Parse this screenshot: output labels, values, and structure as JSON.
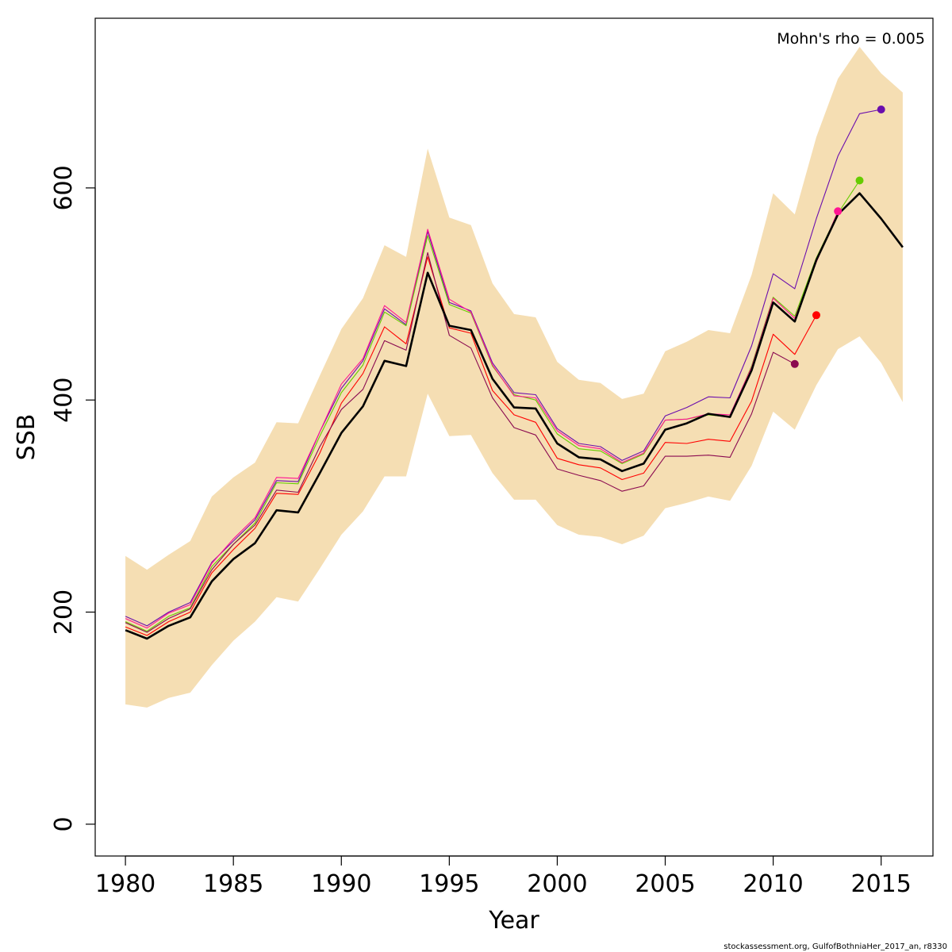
{
  "chart_data": {
    "type": "line",
    "xlabel": "Year",
    "ylabel": "SSB",
    "xlim": [
      1978.6,
      2017.4
    ],
    "ylim": [
      -30,
      760
    ],
    "xticks": [
      1980,
      1985,
      1990,
      1995,
      2000,
      2005,
      2010,
      2015
    ],
    "yticks": [
      0,
      200,
      400,
      600
    ],
    "grid": false,
    "annotation": "Mohn's rho = 0.005",
    "footer": "stockassessment.org, GulfofBothniaHer_2017_an, r8330",
    "colors": {
      "band": "#f5deb3",
      "main": "#000000",
      "peel_2015": "#6a0dad",
      "peel_2014": "#66cc00",
      "peel_2013": "#ff1493",
      "peel_2012": "#ff0000",
      "peel_2011": "#8b0a50"
    },
    "band": {
      "x": [
        1980,
        1981,
        1982,
        1983,
        1984,
        1985,
        1986,
        1987,
        1988,
        1989,
        1990,
        1991,
        1992,
        1993,
        1994,
        1995,
        1996,
        1997,
        1998,
        1999,
        2000,
        2001,
        2002,
        2003,
        2004,
        2005,
        2006,
        2007,
        2008,
        2009,
        2010,
        2011,
        2012,
        2013,
        2014,
        2015,
        2016
      ],
      "upper": [
        253,
        240,
        254,
        267,
        309,
        327,
        341,
        379,
        378,
        423,
        467,
        496,
        546,
        535,
        637,
        572,
        565,
        510,
        481,
        478,
        436,
        419,
        416,
        401,
        406,
        446,
        455,
        466,
        463,
        518,
        595,
        575,
        648,
        703,
        733,
        708,
        690
      ],
      "lower": [
        113,
        110,
        119,
        124,
        150,
        173,
        191,
        214,
        210,
        241,
        273,
        295,
        328,
        328,
        406,
        366,
        367,
        331,
        306,
        306,
        282,
        273,
        271,
        264,
        272,
        298,
        303,
        309,
        305,
        338,
        389,
        372,
        414,
        448,
        460,
        435,
        398
      ]
    },
    "series": [
      {
        "color_key": "main",
        "x": [
          1980,
          1981,
          1982,
          1983,
          1984,
          1985,
          1986,
          1987,
          1988,
          1989,
          1990,
          1991,
          1992,
          1993,
          1994,
          1995,
          1996,
          1997,
          1998,
          1999,
          2000,
          2001,
          2002,
          2003,
          2004,
          2005,
          2006,
          2007,
          2008,
          2009,
          2010,
          2011,
          2012,
          2013,
          2014,
          2015,
          2016
        ],
        "values": [
          183,
          175,
          187,
          195,
          229,
          250,
          265,
          296,
          294,
          331,
          369,
          394,
          437,
          432,
          520,
          470,
          466,
          420,
          393,
          392,
          359,
          346,
          344,
          333,
          340,
          372,
          378,
          387,
          384,
          428,
          492,
          474,
          532,
          575,
          595,
          571,
          544
        ]
      },
      {
        "color_key": "peel_2015",
        "x": [
          1980,
          1981,
          1982,
          1983,
          1984,
          1985,
          1986,
          1987,
          1988,
          1989,
          1990,
          1991,
          1992,
          1993,
          1994,
          1995,
          1996,
          1997,
          1998,
          1999,
          2000,
          2001,
          2002,
          2003,
          2004,
          2005,
          2006,
          2007,
          2008,
          2009,
          2010,
          2011,
          2012,
          2013,
          2014,
          2015
        ],
        "values": [
          196,
          187,
          200,
          209,
          247,
          267,
          287,
          324,
          323,
          370,
          411,
          437,
          486,
          471,
          559,
          492,
          484,
          435,
          407,
          405,
          373,
          359,
          356,
          343,
          352,
          385,
          393,
          403,
          402,
          451,
          519,
          505,
          571,
          630,
          670,
          674
        ]
      },
      {
        "color_key": "peel_2014",
        "x": [
          1980,
          1981,
          1982,
          1983,
          1984,
          1985,
          1986,
          1987,
          1988,
          1989,
          1990,
          1991,
          1992,
          1993,
          1994,
          1995,
          1996,
          1997,
          1998,
          1999,
          2000,
          2001,
          2002,
          2003,
          2004,
          2005,
          2006,
          2007,
          2008,
          2009,
          2010,
          2011,
          2012,
          2013,
          2014
        ],
        "values": [
          191,
          182,
          196,
          204,
          243,
          264,
          284,
          322,
          321,
          366,
          407,
          433,
          483,
          470,
          555,
          490,
          482,
          432,
          405,
          400,
          368,
          354,
          352,
          340,
          349,
          381,
          382,
          386,
          384,
          432,
          497,
          479,
          534,
          576,
          607
        ]
      },
      {
        "color_key": "peel_2013",
        "x": [
          1980,
          1981,
          1982,
          1983,
          1984,
          1985,
          1986,
          1987,
          1988,
          1989,
          1990,
          1991,
          1992,
          1993,
          1994,
          1995,
          1996,
          1997,
          1998,
          1999,
          2000,
          2001,
          2002,
          2003,
          2004,
          2005,
          2006,
          2007,
          2008,
          2009,
          2010,
          2011,
          2012,
          2013
        ],
        "values": [
          194,
          185,
          199,
          207,
          246,
          269,
          289,
          327,
          326,
          370,
          415,
          439,
          489,
          473,
          561,
          495,
          483,
          433,
          404,
          402,
          371,
          357,
          354,
          341,
          350,
          381,
          382,
          387,
          386,
          431,
          496,
          477,
          530,
          578
        ]
      },
      {
        "color_key": "peel_2012",
        "x": [
          1980,
          1981,
          1982,
          1983,
          1984,
          1985,
          1986,
          1987,
          1988,
          1989,
          1990,
          1991,
          1992,
          1993,
          1994,
          1995,
          1996,
          1997,
          1998,
          1999,
          2000,
          2001,
          2002,
          2003,
          2004,
          2005,
          2006,
          2007,
          2008,
          2009,
          2010,
          2011,
          2012
        ],
        "values": [
          186,
          178,
          191,
          200,
          237,
          259,
          279,
          312,
          311,
          350,
          397,
          425,
          469,
          453,
          535,
          468,
          463,
          409,
          386,
          379,
          345,
          339,
          336,
          325,
          331,
          360,
          359,
          363,
          361,
          399,
          462,
          443,
          480
        ]
      },
      {
        "color_key": "peel_2011",
        "x": [
          1980,
          1981,
          1982,
          1983,
          1984,
          1985,
          1986,
          1987,
          1988,
          1989,
          1990,
          1991,
          1992,
          1993,
          1994,
          1995,
          1996,
          1997,
          1998,
          1999,
          2000,
          2001,
          2002,
          2003,
          2004,
          2005,
          2006,
          2007,
          2008,
          2009,
          2010,
          2011
        ],
        "values": [
          190,
          181,
          194,
          203,
          240,
          264,
          282,
          315,
          313,
          356,
          391,
          410,
          456,
          447,
          539,
          461,
          449,
          402,
          374,
          367,
          335,
          329,
          324,
          314,
          319,
          347,
          347,
          348,
          346,
          387,
          445,
          434
        ]
      }
    ],
    "endpoints": [
      {
        "color_key": "peel_2015",
        "x": 2015,
        "y": 674
      },
      {
        "color_key": "peel_2014",
        "x": 2014,
        "y": 607
      },
      {
        "color_key": "peel_2013",
        "x": 2013,
        "y": 578
      },
      {
        "color_key": "peel_2012",
        "x": 2012,
        "y": 480
      },
      {
        "color_key": "peel_2011",
        "x": 2011,
        "y": 434
      }
    ]
  }
}
